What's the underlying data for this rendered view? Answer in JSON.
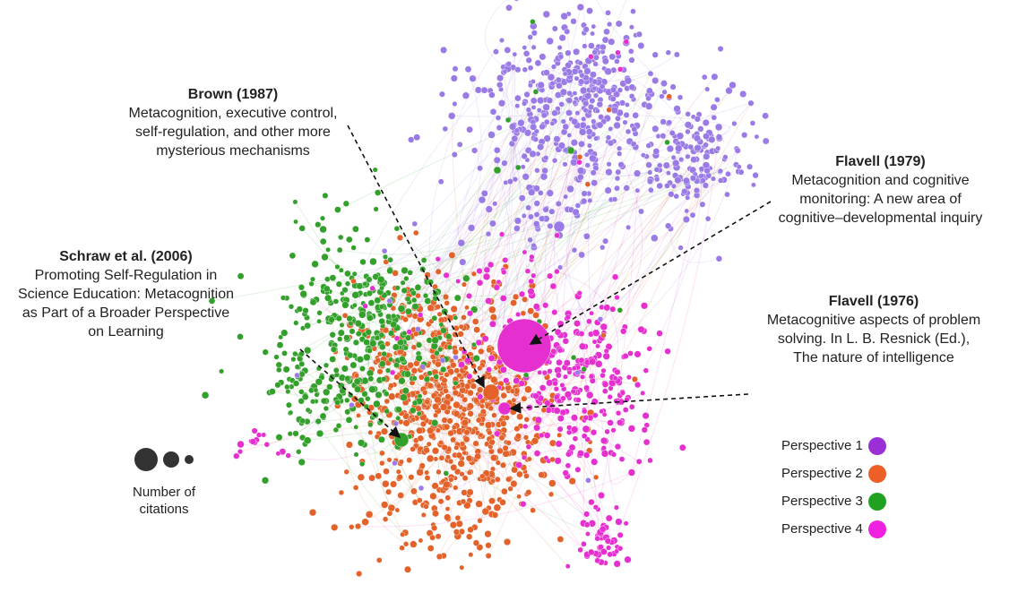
{
  "annotations": [
    {
      "title": "Brown (1987)",
      "text": "Metacognition, executive control, self-regulation, and other more mysterious mechanisms"
    },
    {
      "title": "Flavell (1979)",
      "text": "Metacognition and cognitive monitoring: A new area of cognitive–developmental inquiry"
    },
    {
      "title": "Schraw et al. (2006)",
      "text": "Promoting Self-Regulation in Science Education: Metacognition as Part of a Broader Perspective on Learning"
    },
    {
      "title": "Flavell (1976)",
      "text": "Metacognitive aspects of problem solving. In L. B. Resnick (Ed.), The nature of intelligence"
    }
  ],
  "legend": [
    {
      "label": "Perspective 1",
      "color": "#9b2fd6",
      "node_color": "#9a7be6"
    },
    {
      "label": "Perspective 2",
      "color": "#ee5f28",
      "node_color": "#e2622a"
    },
    {
      "label": "Perspective 3",
      "color": "#22a022",
      "node_color": "#34a02c"
    },
    {
      "label": "Perspective 4",
      "color": "#f020e0",
      "node_color": "#e52fcf"
    }
  ],
  "size_legend": {
    "label": "Number of citations"
  }
}
